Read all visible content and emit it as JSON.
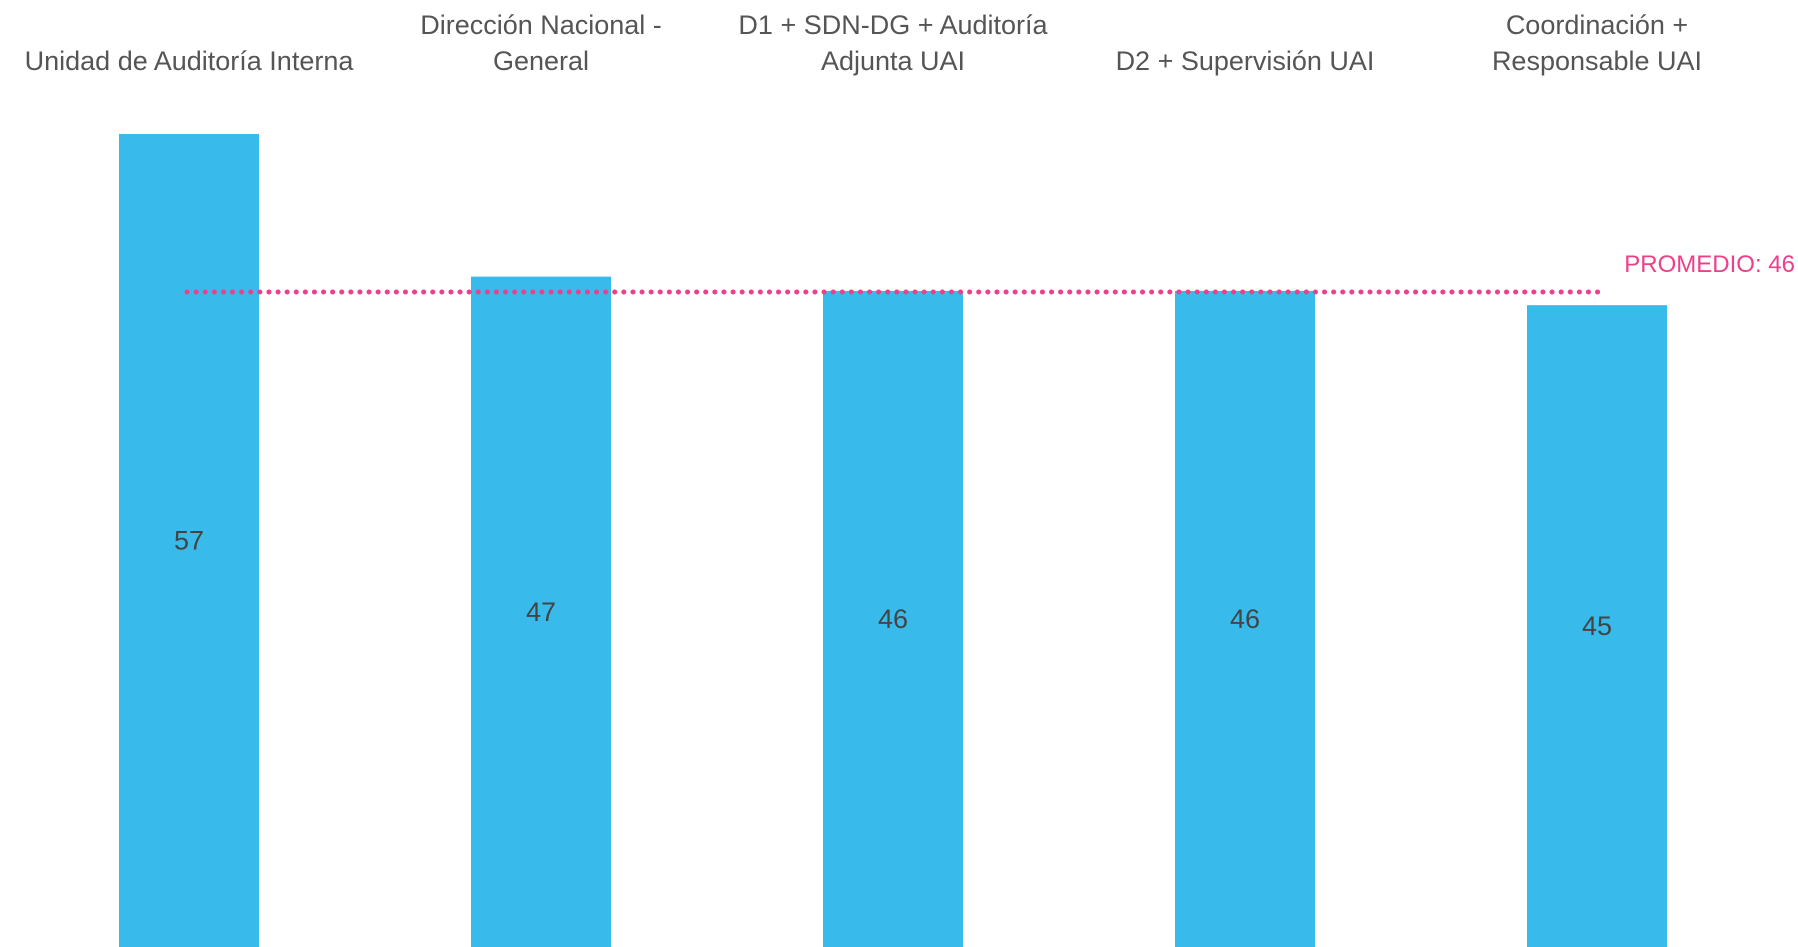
{
  "chart_data": {
    "type": "bar",
    "title": "",
    "xlabel": "",
    "ylabel": "",
    "categories": [
      [
        "Unidad de Auditoría Interna"
      ],
      [
        "Dirección Nacional -",
        "General"
      ],
      [
        "D1 + SDN-DG + Auditoría",
        "Adjunta UAI"
      ],
      [
        "D2 + Supervisión UAI"
      ],
      [
        "Coordinación +",
        "Responsable UAI"
      ]
    ],
    "values": [
      57,
      47,
      46,
      46,
      45
    ],
    "ylim": [
      0,
      57
    ],
    "grid": false,
    "legend": "none",
    "average": {
      "label": "PROMEDIO: 46",
      "value": 46
    },
    "colors": {
      "bar": "#38bbeb",
      "average_line": "#ec3f8c",
      "category_text": "#555555",
      "value_text": "#444444"
    }
  }
}
